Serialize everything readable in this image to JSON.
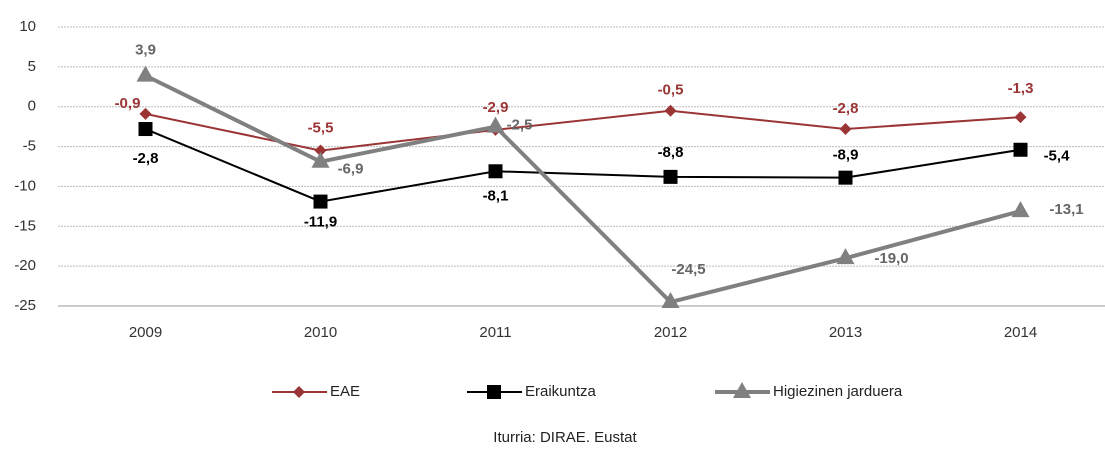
{
  "chart_data": {
    "type": "line",
    "categories": [
      "2009",
      "2010",
      "2011",
      "2012",
      "2013",
      "2014"
    ],
    "series": [
      {
        "name": "EAE",
        "color": "#9b3535",
        "values": [
          -0.9,
          -5.5,
          -2.9,
          -0.5,
          -2.8,
          -1.3
        ],
        "value_labels": [
          "-0,9",
          "-5,5",
          "-2,9",
          "-0,5",
          "-2,8",
          "-1,3"
        ]
      },
      {
        "name": "Eraikuntza",
        "color": "#000000",
        "values": [
          -2.8,
          -11.9,
          -8.1,
          -8.8,
          -8.9,
          -5.4
        ],
        "value_labels": [
          "-2,8",
          "-11,9",
          "-8,1",
          "-8,8",
          "-8,9",
          "-5,4"
        ]
      },
      {
        "name": "Higiezinen jarduera",
        "color": "#808080",
        "values": [
          3.9,
          -6.9,
          -2.5,
          -24.5,
          -19.0,
          -13.1
        ],
        "value_labels": [
          "3,9",
          "-6,9",
          "-2,5",
          "-24,5",
          "-19,0",
          "-13,1"
        ]
      }
    ],
    "ylim": [
      -25,
      10
    ],
    "yticks": [
      -25,
      -20,
      -15,
      -10,
      -5,
      0,
      5,
      10
    ],
    "grid": true,
    "legend": "bottom",
    "source": "Iturria: DIRAE. Eustat"
  }
}
